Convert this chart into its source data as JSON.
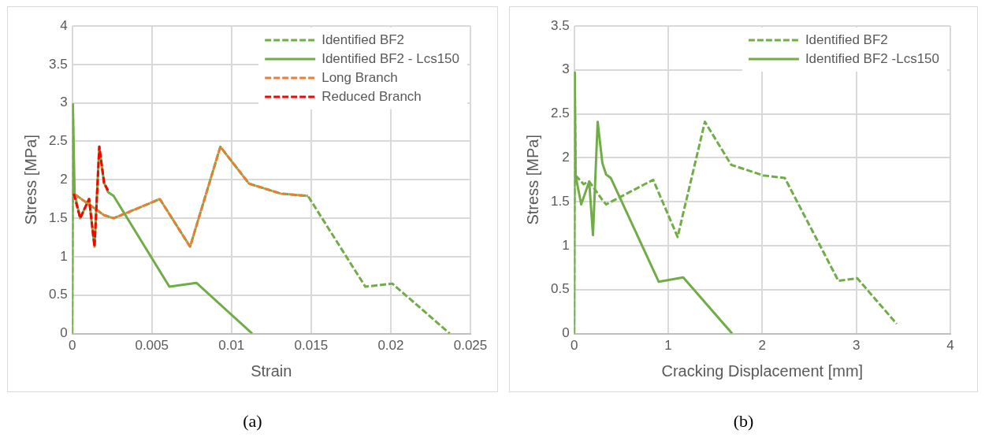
{
  "chart_data": [
    {
      "type": "line",
      "xlabel": "Strain",
      "ylabel": "Stress [MPa]",
      "xlim": [
        0,
        0.025
      ],
      "xticks": [
        0,
        0.005,
        0.01,
        0.015,
        0.02,
        0.025
      ],
      "ylim": [
        0,
        4
      ],
      "yticks": [
        0,
        0.5,
        1,
        1.5,
        2,
        2.5,
        3,
        3.5,
        4
      ],
      "grid": true,
      "legend": "top right",
      "marker": "none",
      "annotations": [
        "(a)"
      ],
      "series": [
        {
          "name": "Identified BF2",
          "color": "#70ad47",
          "line_style": "dashed",
          "x": [
            0,
            4e-05,
            0.0001,
            0.002,
            0.0026,
            0.0047,
            0.0055,
            0.0074,
            0.0093,
            0.0111,
            0.0131,
            0.0148,
            0.0184,
            0.0201,
            0.0237
          ],
          "values": [
            0,
            2.98,
            1.82,
            1.54,
            1.5,
            1.68,
            1.75,
            1.13,
            2.43,
            1.95,
            1.82,
            1.79,
            0.61,
            0.65,
            0
          ]
        },
        {
          "name": "Identified BF2 - Lcs150",
          "color": "#70ad47",
          "line_style": "solid",
          "x": [
            0,
            4e-05,
            0.00015,
            0.0005,
            0.00106,
            0.0014,
            0.0017,
            0.002,
            0.00225,
            0.0026,
            0.0061,
            0.0078,
            0.0113
          ],
          "values": [
            0,
            2.98,
            1.82,
            1.5,
            1.75,
            1.13,
            2.43,
            1.96,
            1.84,
            1.79,
            0.61,
            0.66,
            0
          ]
        },
        {
          "name": "Long Branch",
          "color": "#ed7d31",
          "line_style": "dashed",
          "x": [
            0.0001,
            0.002,
            0.0026,
            0.0047,
            0.0055,
            0.0074,
            0.0093,
            0.0111,
            0.0131,
            0.0148
          ],
          "values": [
            1.82,
            1.54,
            1.5,
            1.68,
            1.75,
            1.13,
            2.43,
            1.95,
            1.82,
            1.79
          ]
        },
        {
          "name": "Reduced Branch",
          "color": "#ff0000",
          "line_style": "dashed",
          "x": [
            0.0001,
            0.0005,
            0.00106,
            0.0014,
            0.0017,
            0.002,
            0.00225
          ],
          "values": [
            1.82,
            1.5,
            1.75,
            1.13,
            2.43,
            1.96,
            1.86
          ]
        }
      ]
    },
    {
      "type": "line",
      "xlabel": "Cracking Displacement [mm]",
      "ylabel": "Stress [MPa]",
      "xlim": [
        0,
        4
      ],
      "xticks": [
        0,
        1,
        2,
        3,
        4
      ],
      "ylim": [
        0,
        3.5
      ],
      "yticks": [
        0,
        0.5,
        1,
        1.5,
        2,
        2.5,
        3,
        3.5
      ],
      "grid": true,
      "legend": "top right",
      "marker": "none",
      "annotations": [
        "(b)"
      ],
      "series": [
        {
          "name": "Identified BF2",
          "color": "#70ad47",
          "line_style": "dashed",
          "x": [
            0,
            0.006,
            0.015,
            0.1,
            0.16,
            0.3,
            0.34,
            0.84,
            1.1,
            1.39,
            1.67,
            2.01,
            2.24,
            2.81,
            3.01,
            3.43
          ],
          "values": [
            0,
            2.97,
            1.8,
            1.7,
            1.73,
            1.52,
            1.47,
            1.75,
            1.1,
            2.41,
            1.92,
            1.8,
            1.77,
            0.6,
            0.63,
            0.11
          ]
        },
        {
          "name": "Identified BF2 -Lcs150",
          "color": "#70ad47",
          "line_style": "solid",
          "x": [
            0,
            0.006,
            0.015,
            0.075,
            0.16,
            0.2,
            0.25,
            0.3,
            0.34,
            0.39,
            0.9,
            1.16,
            1.68
          ],
          "values": [
            0,
            2.97,
            1.8,
            1.47,
            1.73,
            1.12,
            2.41,
            1.94,
            1.81,
            1.77,
            0.59,
            0.64,
            0
          ]
        }
      ]
    }
  ]
}
